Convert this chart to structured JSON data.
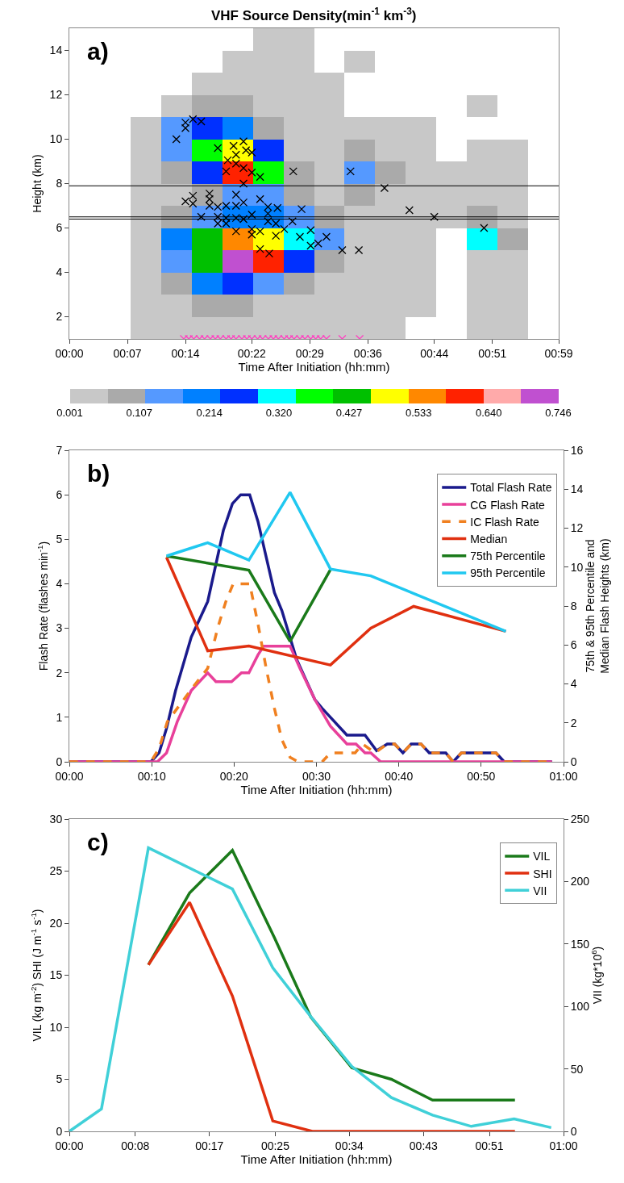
{
  "chart_data": [
    {
      "type": "heatmap",
      "title": "VHF Source Density(min$^{-1}$ km$^{-3}$)",
      "xlabel": "Time After Initiation (hh:mm)",
      "ylabel": "Height (km)",
      "annotations": [
        "a)"
      ],
      "cells": [
        [
          null,
          null,
          null,
          null,
          null,
          null,
          0.03,
          0.03,
          null,
          null,
          null,
          null,
          null,
          null,
          null,
          null
        ],
        [
          null,
          null,
          null,
          null,
          null,
          0.03,
          0.03,
          0.03,
          null,
          0.03,
          null,
          null,
          null,
          null,
          null,
          null
        ],
        [
          null,
          null,
          null,
          null,
          0.03,
          0.03,
          0.03,
          0.03,
          0.03,
          null,
          null,
          null,
          null,
          null,
          null,
          null
        ],
        [
          null,
          null,
          null,
          0.03,
          0.08,
          0.08,
          0.03,
          0.03,
          0.03,
          null,
          null,
          null,
          null,
          0.03,
          null,
          null
        ],
        [
          null,
          null,
          0.03,
          0.15,
          0.25,
          0.2,
          0.08,
          0.03,
          0.03,
          0.03,
          0.03,
          0.03,
          null,
          null,
          null,
          null
        ],
        [
          null,
          null,
          0.03,
          0.12,
          0.4,
          0.5,
          0.25,
          0.03,
          0.03,
          0.08,
          0.03,
          0.03,
          null,
          0.03,
          0.03,
          null
        ],
        [
          null,
          null,
          0.03,
          0.08,
          0.25,
          0.6,
          0.35,
          0.08,
          0.03,
          0.12,
          0.08,
          0.03,
          0.03,
          0.03,
          0.03,
          null
        ],
        [
          null,
          null,
          0.03,
          0.03,
          0.08,
          0.15,
          0.12,
          0.08,
          0.03,
          0.08,
          0.03,
          0.03,
          0.03,
          0.03,
          0.03,
          null
        ],
        [
          null,
          null,
          0.03,
          0.08,
          0.15,
          0.2,
          0.2,
          0.12,
          0.08,
          0.03,
          0.03,
          0.03,
          0.03,
          0.08,
          0.03,
          null
        ],
        [
          null,
          null,
          0.03,
          0.2,
          0.45,
          0.55,
          0.5,
          0.3,
          0.12,
          0.03,
          0.03,
          0.03,
          null,
          0.3,
          0.08,
          null
        ],
        [
          null,
          null,
          0.03,
          0.15,
          0.45,
          0.72,
          0.6,
          0.25,
          0.08,
          0.03,
          0.03,
          0.03,
          null,
          0.03,
          0.03,
          null
        ],
        [
          null,
          null,
          0.03,
          0.08,
          0.2,
          0.25,
          0.15,
          0.08,
          0.03,
          0.03,
          0.03,
          0.03,
          null,
          0.03,
          0.03,
          null
        ],
        [
          null,
          null,
          0.03,
          0.03,
          0.08,
          0.08,
          0.03,
          0.03,
          0.03,
          0.03,
          0.03,
          0.03,
          null,
          0.03,
          0.03,
          null
        ],
        [
          null,
          null,
          0.03,
          0.03,
          0.03,
          0.03,
          0.03,
          0.03,
          0.03,
          0.03,
          0.03,
          null,
          null,
          0.03,
          0.03,
          null
        ]
      ],
      "colors": [
        "#c8c8c8",
        "#aaaaaa",
        "#5599ff",
        "#0080ff",
        "#0030ff",
        "#00ffff",
        "#00ff00",
        "#00c000",
        "#ffff00",
        "#ff8800",
        "#ff2200",
        "#ffaaaa",
        "#c050d0"
      ],
      "clim": [
        0.001,
        0.746
      ],
      "cticks": [
        0.001,
        0.107,
        0.214,
        {
          "value": 0.32,
          "label": "0.320"
        },
        0.427,
        0.533,
        {
          "value": 0.64,
          "label": "0.640"
        },
        0.746
      ],
      "xlim": [
        0,
        59
      ],
      "ylim": [
        1,
        15
      ],
      "xticks": [
        {
          "value": 0,
          "label": "00:00"
        },
        {
          "value": 7,
          "label": "00:07"
        },
        {
          "value": 14,
          "label": "00:14"
        },
        {
          "value": 22,
          "label": "00:22"
        },
        {
          "value": 29,
          "label": "00:29"
        },
        {
          "value": 36,
          "label": "00:36"
        },
        {
          "value": 44,
          "label": "00:44"
        },
        {
          "value": 51,
          "label": "00:51"
        },
        {
          "value": 59,
          "label": "00:59"
        }
      ],
      "yticks": [
        2,
        4,
        6,
        8,
        10,
        12,
        14
      ],
      "ref_lines": [
        {
          "axis": "y",
          "value": 7.9,
          "color": "#000000"
        },
        {
          "axis": "y",
          "value": 6.5,
          "color": "#000000"
        },
        {
          "axis": "y",
          "value": 6.4,
          "color": "#000000"
        }
      ],
      "series": [
        {
          "type": "scatter",
          "marker": "cross",
          "color": "#000000",
          "x": [
            12.9,
            14.0,
            14.9,
            15.9,
            14.0,
            17.9,
            19.8,
            21.0,
            20.1,
            21.3,
            22.0,
            19.1,
            20.1,
            21.0,
            18.9,
            22.0,
            23.0,
            21.0,
            27.0,
            33.9,
            38.0,
            41.0,
            44.0,
            50.0,
            14.0,
            14.9,
            14.9,
            16.9,
            16.9,
            15.9,
            16.9,
            17.9,
            18.9,
            20.1,
            20.1,
            21.0,
            23.0,
            23.95,
            25.1,
            28.0,
            17.9,
            18.9,
            20.1,
            21.0,
            22.0,
            23.95,
            17.9,
            18.9,
            20.1,
            22.0,
            23.95,
            24.9,
            25.9,
            26.9,
            23.0,
            22.0,
            24.9,
            27.8,
            29.1,
            29.1,
            30.0,
            31.0,
            23.0,
            24.1,
            32.9,
            34.9
          ],
          "values": [
            10.0,
            10.75,
            10.9,
            10.8,
            10.5,
            9.6,
            9.7,
            9.9,
            9.3,
            9.5,
            9.4,
            9.05,
            8.9,
            8.7,
            8.55,
            8.5,
            8.3,
            8.0,
            8.55,
            8.55,
            7.8,
            6.8,
            6.5,
            6.0,
            7.2,
            7.45,
            7.1,
            7.55,
            7.3,
            6.5,
            7.0,
            6.95,
            7.0,
            7.5,
            7.0,
            7.15,
            7.3,
            6.95,
            6.9,
            6.85,
            6.5,
            6.45,
            6.45,
            6.4,
            6.6,
            6.65,
            6.2,
            6.2,
            5.85,
            5.95,
            6.3,
            6.2,
            5.95,
            6.3,
            5.85,
            5.7,
            5.65,
            5.6,
            5.9,
            5.2,
            5.3,
            5.6,
            5.05,
            4.85,
            5.0,
            5.0
          ]
        },
        {
          "type": "scatter",
          "marker": "cross",
          "color": "#ff40c0",
          "x": [
            13.8,
            14.4,
            15.0,
            15.7,
            16.3,
            17.0,
            17.6,
            18.2,
            18.9,
            19.5,
            20.1,
            20.8,
            21.4,
            22.0,
            22.7,
            23.3,
            24.0,
            24.6,
            25.2,
            25.9,
            26.5,
            27.1,
            27.8,
            28.4,
            29.1,
            29.7,
            30.3,
            31.0,
            32.9,
            35.0
          ],
          "values": [
            1,
            1,
            1,
            1,
            1,
            1,
            1,
            1,
            1,
            1,
            1,
            1,
            1,
            1,
            1,
            1,
            1,
            1,
            1,
            1,
            1,
            1,
            1,
            1,
            1,
            1,
            1,
            1,
            1,
            1
          ]
        }
      ]
    },
    {
      "type": "line",
      "xlabel": "Time After Initiation (hh:mm)",
      "ylabel": "Flash Rate (flashes min$^{-1}$)",
      "y2label": "75th & 95th Percentile and Median Flash Heights (km)",
      "annotations": [
        "b)"
      ],
      "xlim": [
        0,
        60
      ],
      "ylim": [
        0,
        7
      ],
      "y2lim": [
        0,
        16
      ],
      "xticks": [
        {
          "value": 0,
          "label": "00:00"
        },
        {
          "value": 10,
          "label": "00:10"
        },
        {
          "value": 20,
          "label": "00:20"
        },
        {
          "value": 30,
          "label": "00:30"
        },
        {
          "value": 40,
          "label": "00:40"
        },
        {
          "value": 50,
          "label": "00:50"
        },
        {
          "value": 60,
          "label": "01:00"
        }
      ],
      "yticks": [
        0,
        1,
        2,
        3,
        4,
        5,
        6,
        7
      ],
      "y2ticks": [
        0,
        2,
        4,
        6,
        8,
        10,
        12,
        14,
        16
      ],
      "legend": "top right",
      "series": [
        {
          "name": "Total Flash Rate",
          "color": "#1a1a8c",
          "x": [
            0,
            9.9,
            10.9,
            11.8,
            12.9,
            14.8,
            16.8,
            18.7,
            19.8,
            20.8,
            21.9,
            22.9,
            24.9,
            25.8,
            27.6,
            29.8,
            30.7,
            31.7,
            33.7,
            35.9,
            37.3,
            38.6,
            39.5,
            40.5,
            41.5,
            42.7,
            43.7,
            45.7,
            46.6,
            47.6,
            51.8,
            52.8,
            58.6
          ],
          "values": [
            0,
            0,
            0.2,
            0.75,
            1.6,
            2.8,
            3.6,
            5.2,
            5.8,
            6.0,
            6.0,
            5.4,
            3.8,
            3.4,
            2.3,
            1.4,
            1.2,
            1.0,
            0.6,
            0.6,
            0.25,
            0.4,
            0.4,
            0.2,
            0.4,
            0.4,
            0.2,
            0.2,
            0,
            0.2,
            0.2,
            0,
            0
          ]
        },
        {
          "name": "CG Flash Rate",
          "color": "#e8409a",
          "x": [
            0,
            10.7,
            11.8,
            13.1,
            14.8,
            16.8,
            17.8,
            19.7,
            20.9,
            21.8,
            22.9,
            23.6,
            26.8,
            28.0,
            29.8,
            31.7,
            33.7,
            34.8,
            35.9,
            36.6,
            37.8,
            58.6
          ],
          "values": [
            0,
            0,
            0.2,
            0.9,
            1.6,
            2.0,
            1.8,
            1.8,
            2.0,
            2.0,
            2.4,
            2.6,
            2.6,
            2.1,
            1.4,
            0.8,
            0.4,
            0.4,
            0.2,
            0.2,
            0,
            0
          ]
        },
        {
          "name": "IC Flash Rate",
          "color": "#f08020",
          "line_style": "dashed",
          "x": [
            0,
            9.9,
            10.9,
            11.9,
            15.1,
            16.8,
            18.0,
            19.0,
            19.9,
            21.9,
            22.9,
            23.9,
            24.9,
            25.8,
            26.8,
            27.8,
            30.7,
            31.7,
            34.7,
            35.6,
            37.1,
            38.6,
            39.5,
            40.5,
            41.5,
            42.7,
            43.7,
            45.7,
            46.6,
            47.6,
            51.8,
            52.8,
            58.6
          ],
          "values": [
            0,
            0,
            0.3,
            0.9,
            1.7,
            2.1,
            3.0,
            3.6,
            4.0,
            4.0,
            3.1,
            2.1,
            1.2,
            0.5,
            0.1,
            0,
            0,
            0.2,
            0.2,
            0.4,
            0.2,
            0.4,
            0.4,
            0.2,
            0.4,
            0.4,
            0.2,
            0.2,
            0,
            0.2,
            0.2,
            0,
            0
          ]
        },
        {
          "name": "Median",
          "color": "#e03010",
          "axis": "y2",
          "x": [
            11.8,
            16.8,
            21.8,
            31.7,
            36.6,
            41.8,
            53.0
          ],
          "values": [
            10.5,
            5.7,
            5.95,
            4.97,
            6.86,
            7.98,
            6.7
          ]
        },
        {
          "name": "75th Percentile",
          "color": "#1a7a1a",
          "axis": "y2",
          "x": [
            11.8,
            21.8,
            26.8,
            31.7
          ],
          "values": [
            10.57,
            9.84,
            6.18,
            9.87
          ]
        },
        {
          "name": "95th Percentile",
          "color": "#20c8f0",
          "axis": "y2",
          "x": [
            11.8,
            16.8,
            21.8,
            26.8,
            31.7,
            36.6,
            53.0
          ],
          "values": [
            10.57,
            11.25,
            10.36,
            13.84,
            9.9,
            9.55,
            6.7
          ]
        }
      ]
    },
    {
      "type": "line",
      "xlabel": "Time After Initiation (hh:mm)",
      "ylabel": "VIL (kg m$^{-2}$) SHI (J m$^{-1}$ s$^{-1}$)",
      "y2label": "VII (kg*10$^{6}$)",
      "annotations": [
        "c)"
      ],
      "xlim": [
        0,
        60
      ],
      "ylim": [
        0,
        30
      ],
      "y2lim": [
        0,
        250
      ],
      "xticks": [
        {
          "value": 0,
          "label": "00:00"
        },
        {
          "value": 8,
          "label": "00:08"
        },
        {
          "value": 17,
          "label": "00:17"
        },
        {
          "value": 25,
          "label": "00:25"
        },
        {
          "value": 34,
          "label": "00:34"
        },
        {
          "value": 43,
          "label": "00:43"
        },
        {
          "value": 51,
          "label": "00:51"
        },
        {
          "value": 60,
          "label": "01:00"
        }
      ],
      "yticks": [
        0,
        5,
        10,
        15,
        20,
        25,
        30
      ],
      "y2ticks": [
        0,
        50,
        100,
        150,
        200,
        250
      ],
      "legend": "top right",
      "series": [
        {
          "name": "VIL",
          "color": "#1a7a1a",
          "x": [
            9.6,
            14.6,
            19.8,
            24.9,
            29.3,
            34.3,
            39.1,
            44.1,
            54.1
          ],
          "values": [
            16,
            22.9,
            27.0,
            18.6,
            11.0,
            6.1,
            5.0,
            3.0,
            3.0
          ]
        },
        {
          "name": "SHI",
          "color": "#e03010",
          "x": [
            9.6,
            14.6,
            19.8,
            24.7,
            29.5,
            54.1
          ],
          "values": [
            16,
            22.0,
            13.0,
            1.0,
            0,
            0
          ]
        },
        {
          "name": "VII",
          "color": "#40d0d8",
          "axis": "y2",
          "x": [
            0,
            3.9,
            9.6,
            19.8,
            24.7,
            29.3,
            34.3,
            39.1,
            44.1,
            48.8,
            54.0,
            58.5
          ],
          "values": [
            0,
            18,
            227,
            194,
            131,
            92,
            52,
            27,
            13,
            4,
            10,
            3
          ]
        }
      ]
    }
  ]
}
